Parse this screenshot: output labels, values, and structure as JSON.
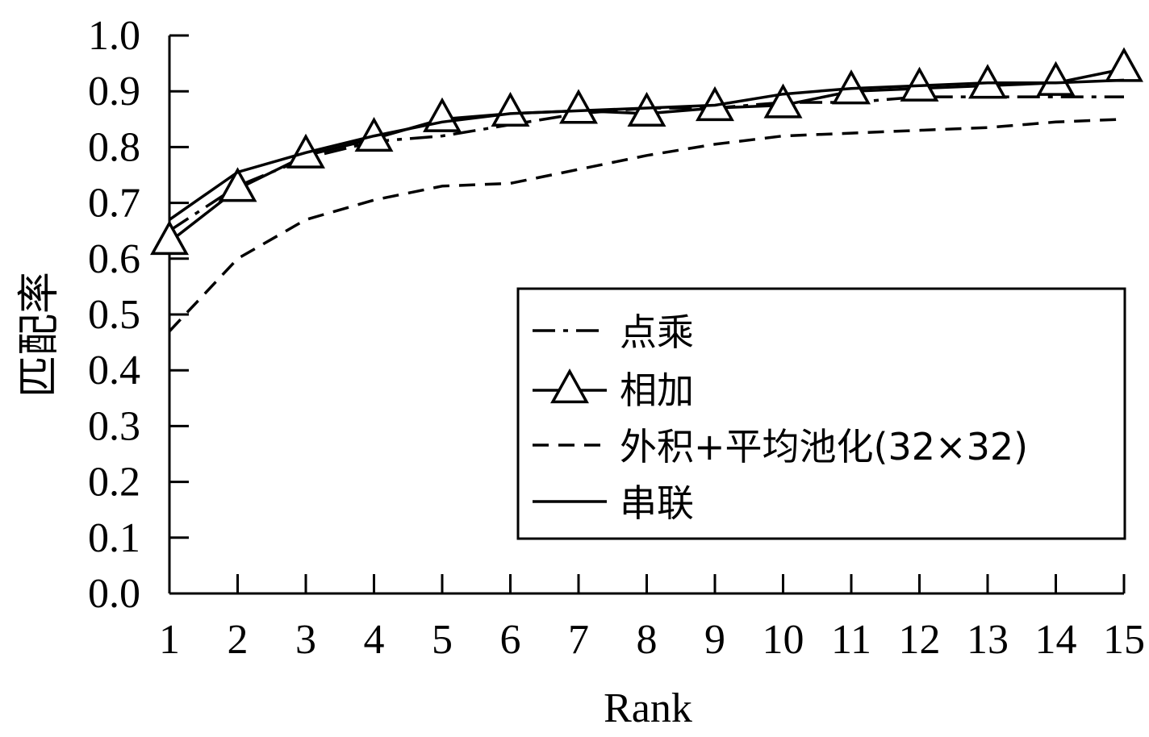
{
  "chart_data": {
    "type": "line",
    "xlabel": "Rank",
    "ylabel": "匹配率",
    "x": [
      1,
      2,
      3,
      4,
      5,
      6,
      7,
      8,
      9,
      10,
      11,
      12,
      13,
      14,
      15
    ],
    "xticks": [
      "1",
      "2",
      "3",
      "4",
      "5",
      "6",
      "7",
      "8",
      "9",
      "10",
      "11",
      "12",
      "13",
      "14",
      "15"
    ],
    "xlim": [
      1,
      15
    ],
    "ylim": [
      0.0,
      1.0
    ],
    "yticks": [
      "0.0",
      "0.1",
      "0.2",
      "0.3",
      "0.4",
      "0.5",
      "0.6",
      "0.7",
      "0.8",
      "0.9",
      "1.0"
    ],
    "grid": false,
    "legend_position": "center-right",
    "series": [
      {
        "name": "点乘",
        "style": "dash-dot",
        "values": [
          0.65,
          0.73,
          0.78,
          0.81,
          0.82,
          0.84,
          0.86,
          0.87,
          0.87,
          0.88,
          0.88,
          0.89,
          0.89,
          0.89,
          0.89
        ]
      },
      {
        "name": "相加",
        "style": "solid-triangle",
        "values": [
          0.63,
          0.725,
          0.785,
          0.815,
          0.85,
          0.86,
          0.865,
          0.86,
          0.87,
          0.875,
          0.9,
          0.905,
          0.91,
          0.915,
          0.94
        ]
      },
      {
        "name": "外积+平均池化(32×32)",
        "style": "dashed",
        "values": [
          0.47,
          0.6,
          0.67,
          0.705,
          0.73,
          0.735,
          0.76,
          0.785,
          0.805,
          0.82,
          0.825,
          0.83,
          0.835,
          0.845,
          0.85
        ]
      },
      {
        "name": "串联",
        "style": "solid",
        "values": [
          0.67,
          0.755,
          0.79,
          0.82,
          0.845,
          0.86,
          0.865,
          0.87,
          0.875,
          0.895,
          0.905,
          0.91,
          0.915,
          0.915,
          0.92
        ]
      }
    ]
  }
}
